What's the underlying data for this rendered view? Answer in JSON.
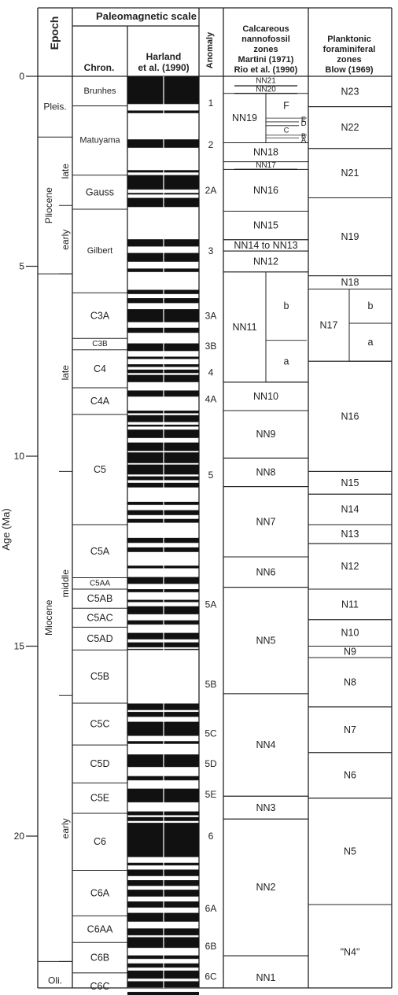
{
  "header": {
    "epoch": "Epoch",
    "paleomagnetic_scale": "Paleomagnetic scale",
    "chron": "Chron.",
    "harland_l1": "Harland",
    "harland_l2": "et al. (1990)",
    "anomaly": "Anomaly",
    "nanno_l1": "Calcareous",
    "nanno_l2": "nannofossil",
    "nanno_l3": "zones",
    "nanno_l4": "Martini (1971)",
    "nanno_l5": "Rio et al. (1990)",
    "foram_l1": "Planktonic",
    "foram_l2": "foraminiferal",
    "foram_l3": "zones",
    "foram_l4": "Blow (1969)"
  },
  "axis": {
    "label": "Age (Ma)",
    "range": [
      0,
      24
    ],
    "ticks": [
      {
        "value": 0,
        "label": "0"
      },
      {
        "value": 5,
        "label": "5"
      },
      {
        "value": 10,
        "label": "10"
      },
      {
        "value": 15,
        "label": "15"
      },
      {
        "value": 20,
        "label": "20"
      }
    ]
  },
  "epochs": [
    {
      "name": "Pleis.",
      "from": 0,
      "to": 1.6
    },
    {
      "name": "Pliocene",
      "from": 1.6,
      "to": 5.2
    },
    {
      "name": "Miocene",
      "from": 5.2,
      "to": 23.3
    },
    {
      "name": "Oli.",
      "from": 23.3,
      "to": 24.3
    }
  ],
  "subepochs": [
    {
      "name": "late",
      "from": 1.6,
      "to": 3.4
    },
    {
      "name": "early",
      "from": 3.4,
      "to": 5.2
    },
    {
      "name": "late",
      "from": 5.2,
      "to": 10.4
    },
    {
      "name": "middle",
      "from": 10.4,
      "to": 16.3
    },
    {
      "name": "early",
      "from": 16.3,
      "to": 23.3
    }
  ],
  "chrons": [
    {
      "name": "Brunhes",
      "from": 0,
      "to": 0.78
    },
    {
      "name": "Matuyama",
      "from": 0.78,
      "to": 2.6
    },
    {
      "name": "Gauss",
      "from": 2.6,
      "to": 3.5
    },
    {
      "name": "Gilbert",
      "from": 3.5,
      "to": 5.7
    },
    {
      "name": "C3A",
      "from": 5.7,
      "to": 6.9
    },
    {
      "name": "C3B",
      "from": 6.9,
      "to": 7.2
    },
    {
      "name": "C4",
      "from": 7.2,
      "to": 8.2
    },
    {
      "name": "C4A",
      "from": 8.2,
      "to": 8.9
    },
    {
      "name": "C5",
      "from": 8.9,
      "to": 11.8
    },
    {
      "name": "C5A",
      "from": 11.8,
      "to": 13.2
    },
    {
      "name": "C5AA",
      "from": 13.2,
      "to": 13.5
    },
    {
      "name": "C5AB",
      "from": 13.5,
      "to": 14.0
    },
    {
      "name": "C5AC",
      "from": 14.0,
      "to": 14.5
    },
    {
      "name": "C5AD",
      "from": 14.5,
      "to": 15.1
    },
    {
      "name": "C5B",
      "from": 15.1,
      "to": 16.5
    },
    {
      "name": "C5C",
      "from": 16.5,
      "to": 17.6
    },
    {
      "name": "C5D",
      "from": 17.6,
      "to": 18.6
    },
    {
      "name": "C5E",
      "from": 18.6,
      "to": 19.4
    },
    {
      "name": "C6",
      "from": 19.4,
      "to": 20.9
    },
    {
      "name": "C6A",
      "from": 20.9,
      "to": 22.1
    },
    {
      "name": "C6AA",
      "from": 22.1,
      "to": 22.8
    },
    {
      "name": "C6B",
      "from": 22.8,
      "to": 23.6
    },
    {
      "name": "C6C",
      "from": 23.6,
      "to": 24.3
    }
  ],
  "normal_polarity": [
    [
      0,
      0.73
    ],
    [
      0.9,
      0.97
    ],
    [
      1.66,
      1.88
    ],
    [
      2.47,
      2.53
    ],
    [
      2.6,
      2.98
    ],
    [
      3.07,
      3.11
    ],
    [
      3.2,
      3.44
    ],
    [
      4.29,
      4.48
    ],
    [
      4.65,
      4.88
    ],
    [
      5.06,
      5.15
    ],
    [
      5.62,
      5.73
    ],
    [
      5.84,
      5.97
    ],
    [
      6.13,
      6.47
    ],
    [
      6.62,
      6.75
    ],
    [
      7.03,
      7.23
    ],
    [
      7.38,
      7.44
    ],
    [
      7.58,
      7.65
    ],
    [
      7.72,
      7.81
    ],
    [
      7.86,
      8.05
    ],
    [
      8.27,
      8.43
    ],
    [
      8.8,
      8.87
    ],
    [
      8.92,
      9.1
    ],
    [
      9.17,
      9.22
    ],
    [
      9.3,
      9.52
    ],
    [
      9.64,
      9.86
    ],
    [
      9.9,
      10.18
    ],
    [
      10.22,
      10.48
    ],
    [
      10.53,
      10.63
    ],
    [
      10.7,
      10.82
    ],
    [
      11.2,
      11.28
    ],
    [
      11.42,
      11.55
    ],
    [
      11.65,
      11.75
    ],
    [
      12.15,
      12.28
    ],
    [
      12.4,
      12.52
    ],
    [
      12.88,
      12.95
    ],
    [
      13.18,
      13.36
    ],
    [
      13.5,
      13.58
    ],
    [
      13.78,
      13.84
    ],
    [
      13.95,
      14.16
    ],
    [
      14.32,
      14.43
    ],
    [
      14.65,
      14.82
    ],
    [
      14.9,
      15.03
    ],
    [
      15.07,
      15.1
    ],
    [
      16.51,
      16.68
    ],
    [
      16.73,
      16.86
    ],
    [
      16.99,
      17.36
    ],
    [
      17.5,
      17.57
    ],
    [
      17.85,
      18.18
    ],
    [
      18.42,
      18.53
    ],
    [
      18.75,
      19.11
    ],
    [
      19.35,
      19.45
    ],
    [
      19.5,
      19.6
    ],
    [
      19.65,
      20.55
    ],
    [
      20.7,
      20.77
    ],
    [
      20.88,
      21.05
    ],
    [
      21.16,
      21.31
    ],
    [
      21.41,
      21.59
    ],
    [
      21.72,
      21.88
    ],
    [
      22.02,
      22.25
    ],
    [
      22.43,
      22.61
    ],
    [
      22.66,
      22.94
    ],
    [
      23.14,
      23.23
    ],
    [
      23.35,
      23.46
    ],
    [
      23.54,
      23.75
    ],
    [
      23.82,
      23.98
    ],
    [
      24.1,
      24.25
    ]
  ],
  "anomalies": [
    {
      "label": "1",
      "age": 0.7
    },
    {
      "label": "2",
      "age": 1.8
    },
    {
      "label": "2A",
      "age": 3.0
    },
    {
      "label": "3",
      "age": 4.6
    },
    {
      "label": "3A",
      "age": 6.3
    },
    {
      "label": "3B",
      "age": 7.1
    },
    {
      "label": "4",
      "age": 7.8
    },
    {
      "label": "4A",
      "age": 8.5
    },
    {
      "label": "5",
      "age": 10.5
    },
    {
      "label": "5A",
      "age": 13.9
    },
    {
      "label": "5B",
      "age": 16.0
    },
    {
      "label": "5C",
      "age": 17.3
    },
    {
      "label": "5D",
      "age": 18.1
    },
    {
      "label": "5E",
      "age": 18.9
    },
    {
      "label": "6",
      "age": 20.0
    },
    {
      "label": "6A",
      "age": 21.9
    },
    {
      "label": "6B",
      "age": 22.9
    },
    {
      "label": "6C",
      "age": 23.7
    }
  ],
  "nanno": {
    "zones": [
      {
        "name": "NN19",
        "from": 0.45,
        "to": 1.75,
        "mode": "left"
      },
      {
        "name": "NN18",
        "from": 1.75,
        "to": 2.25,
        "mode": "full"
      },
      {
        "name": "NN16",
        "from": 2.45,
        "to": 3.55,
        "mode": "full"
      },
      {
        "name": "NN15",
        "from": 3.55,
        "to": 4.3,
        "mode": "full"
      },
      {
        "name": "NN14 to NN13",
        "from": 4.3,
        "to": 4.6,
        "mode": "full"
      },
      {
        "name": "NN12",
        "from": 4.6,
        "to": 5.15,
        "mode": "full"
      },
      {
        "name": "NN11",
        "from": 5.15,
        "to": 8.05,
        "mode": "left"
      },
      {
        "name": "NN10",
        "from": 8.05,
        "to": 8.8,
        "mode": "full"
      },
      {
        "name": "NN9",
        "from": 8.8,
        "to": 10.05,
        "mode": "full"
      },
      {
        "name": "NN8",
        "from": 10.05,
        "to": 10.8,
        "mode": "full"
      },
      {
        "name": "NN7",
        "from": 10.8,
        "to": 12.65,
        "mode": "full"
      },
      {
        "name": "NN6",
        "from": 12.65,
        "to": 13.45,
        "mode": "full"
      },
      {
        "name": "NN5",
        "from": 13.45,
        "to": 16.25,
        "mode": "full"
      },
      {
        "name": "NN4",
        "from": 16.25,
        "to": 18.95,
        "mode": "full"
      },
      {
        "name": "NN3",
        "from": 18.95,
        "to": 19.55,
        "mode": "full"
      },
      {
        "name": "NN2",
        "from": 19.55,
        "to": 23.15,
        "mode": "full"
      },
      {
        "name": "NN1",
        "from": 23.15,
        "to": 24.3,
        "mode": "full"
      }
    ],
    "small": [
      {
        "name": "NN21",
        "from": 0,
        "to": 0.25,
        "mode": "full"
      },
      {
        "name": "NN20",
        "from": 0.25,
        "to": 0.45,
        "mode": "full"
      },
      {
        "name": "NN17",
        "from": 2.25,
        "to": 2.45,
        "mode": "full"
      }
    ],
    "subzones": [
      {
        "name": "F",
        "from": 0.45,
        "to": 1.1
      },
      {
        "name": "E",
        "from": 1.1,
        "to": 1.2
      },
      {
        "name": "D",
        "from": 1.2,
        "to": 1.3
      },
      {
        "name": "C",
        "from": 1.3,
        "to": 1.55
      },
      {
        "name": "B",
        "from": 1.55,
        "to": 1.62
      },
      {
        "name": "A",
        "from": 1.62,
        "to": 1.75
      },
      {
        "name": "b",
        "from": 5.15,
        "to": 6.95
      },
      {
        "name": "a",
        "from": 6.95,
        "to": 8.05
      }
    ]
  },
  "foram": {
    "zones": [
      {
        "name": "N23",
        "from": 0,
        "to": 0.8,
        "mode": "full"
      },
      {
        "name": "N22",
        "from": 0.8,
        "to": 1.9,
        "mode": "full"
      },
      {
        "name": "N21",
        "from": 1.9,
        "to": 3.2,
        "mode": "full"
      },
      {
        "name": "N19",
        "from": 3.2,
        "to": 5.25,
        "mode": "full"
      },
      {
        "name": "N18",
        "from": 5.25,
        "to": 5.6,
        "mode": "full"
      },
      {
        "name": "N17",
        "from": 5.6,
        "to": 7.5,
        "mode": "left"
      },
      {
        "name": "N16",
        "from": 7.5,
        "to": 10.4,
        "mode": "full"
      },
      {
        "name": "N15",
        "from": 10.4,
        "to": 11.0,
        "mode": "full"
      },
      {
        "name": "N14",
        "from": 11.0,
        "to": 11.8,
        "mode": "full"
      },
      {
        "name": "N13",
        "from": 11.8,
        "to": 12.3,
        "mode": "full"
      },
      {
        "name": "N12",
        "from": 12.3,
        "to": 13.5,
        "mode": "full"
      },
      {
        "name": "N11",
        "from": 13.5,
        "to": 14.3,
        "mode": "full"
      },
      {
        "name": "N10",
        "from": 14.3,
        "to": 15.0,
        "mode": "full"
      },
      {
        "name": "N9",
        "from": 15.0,
        "to": 15.3,
        "mode": "full"
      },
      {
        "name": "N8",
        "from": 15.3,
        "to": 16.6,
        "mode": "full"
      },
      {
        "name": "N7",
        "from": 16.6,
        "to": 17.8,
        "mode": "full"
      },
      {
        "name": "N6",
        "from": 17.8,
        "to": 19.0,
        "mode": "full"
      },
      {
        "name": "N5",
        "from": 19.0,
        "to": 21.8,
        "mode": "full"
      },
      {
        "name": "\"N4\"",
        "from": 21.8,
        "to": 24.3,
        "mode": "full"
      }
    ],
    "subzones": [
      {
        "name": "b",
        "from": 5.6,
        "to": 6.5
      },
      {
        "name": "a",
        "from": 6.5,
        "to": 7.5
      }
    ]
  }
}
